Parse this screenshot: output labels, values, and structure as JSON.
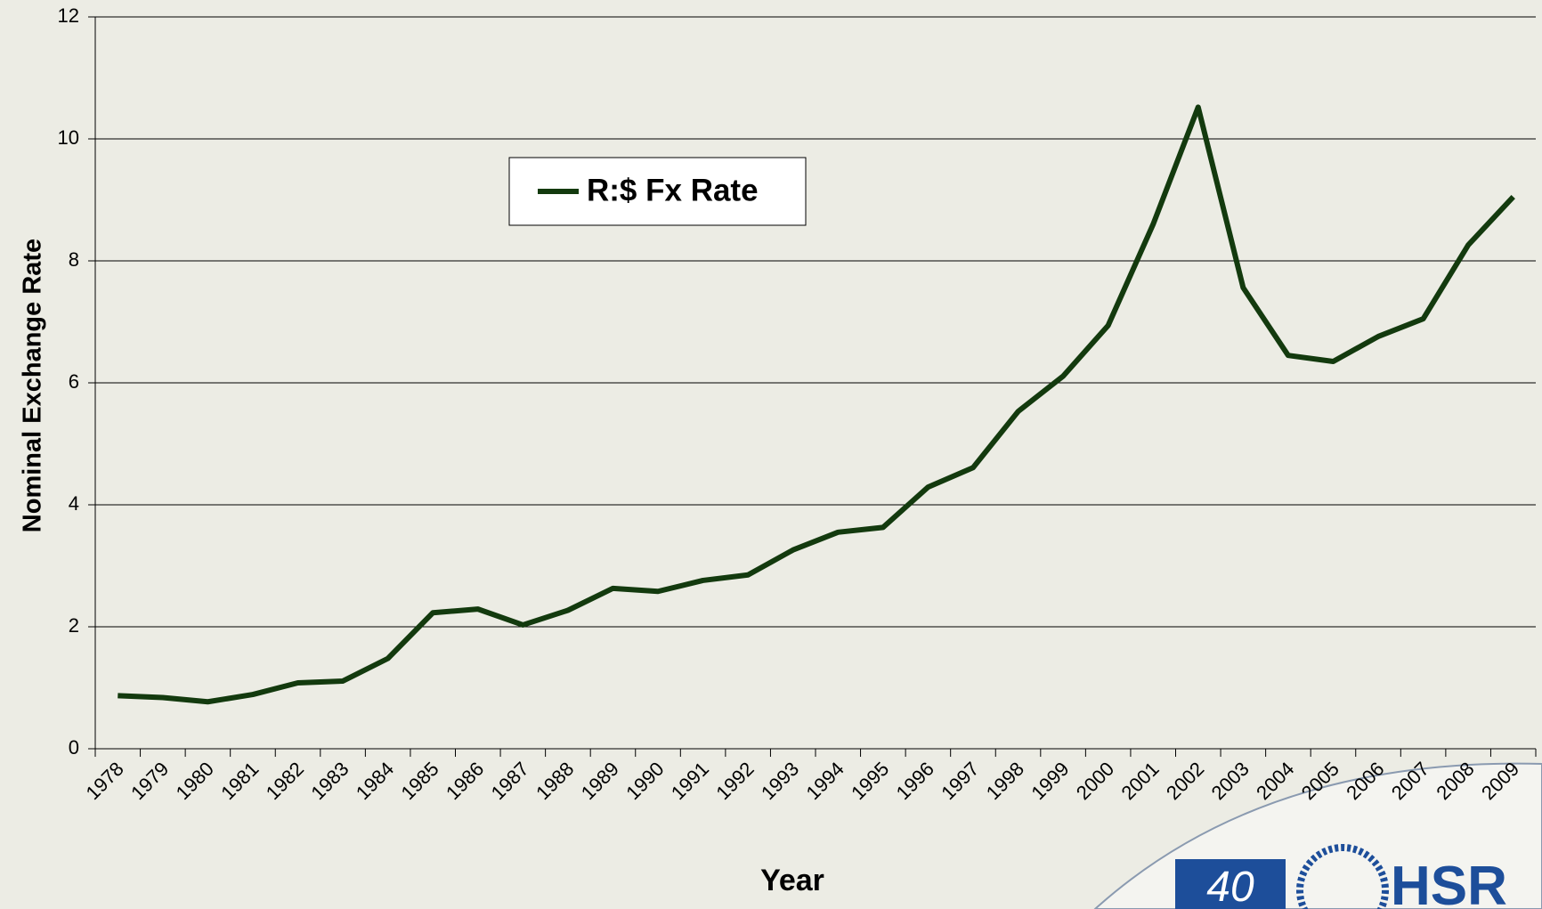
{
  "chart_data": {
    "type": "line",
    "y_axis_label": "Nominal Exchange Rate",
    "x_axis_label": "Year",
    "categories": [
      "1978",
      "1979",
      "1980",
      "1981",
      "1982",
      "1983",
      "1984",
      "1985",
      "1986",
      "1987",
      "1988",
      "1989",
      "1990",
      "1991",
      "1992",
      "1993",
      "1994",
      "1995",
      "1996",
      "1997",
      "1998",
      "1999",
      "2000",
      "2001",
      "2002",
      "2003",
      "2004",
      "2005",
      "2006",
      "2007",
      "2008",
      "2009"
    ],
    "series": [
      {
        "name": "R:$ Fx Rate",
        "color": "#133a0e",
        "values": [
          0.87,
          0.84,
          0.77,
          0.89,
          1.08,
          1.11,
          1.48,
          2.23,
          2.29,
          2.03,
          2.27,
          2.63,
          2.58,
          2.76,
          2.85,
          3.26,
          3.55,
          3.63,
          4.29,
          4.61,
          5.53,
          6.11,
          6.94,
          8.6,
          10.52,
          7.56,
          6.45,
          6.35,
          6.76,
          7.05,
          8.26,
          9.05
        ]
      }
    ],
    "ylim": [
      0,
      12
    ],
    "yticks": [
      0,
      2,
      4,
      6,
      8,
      10,
      12
    ],
    "grid": true,
    "legend": "top-left"
  },
  "logo": {
    "number": "40",
    "text": "HSR"
  }
}
